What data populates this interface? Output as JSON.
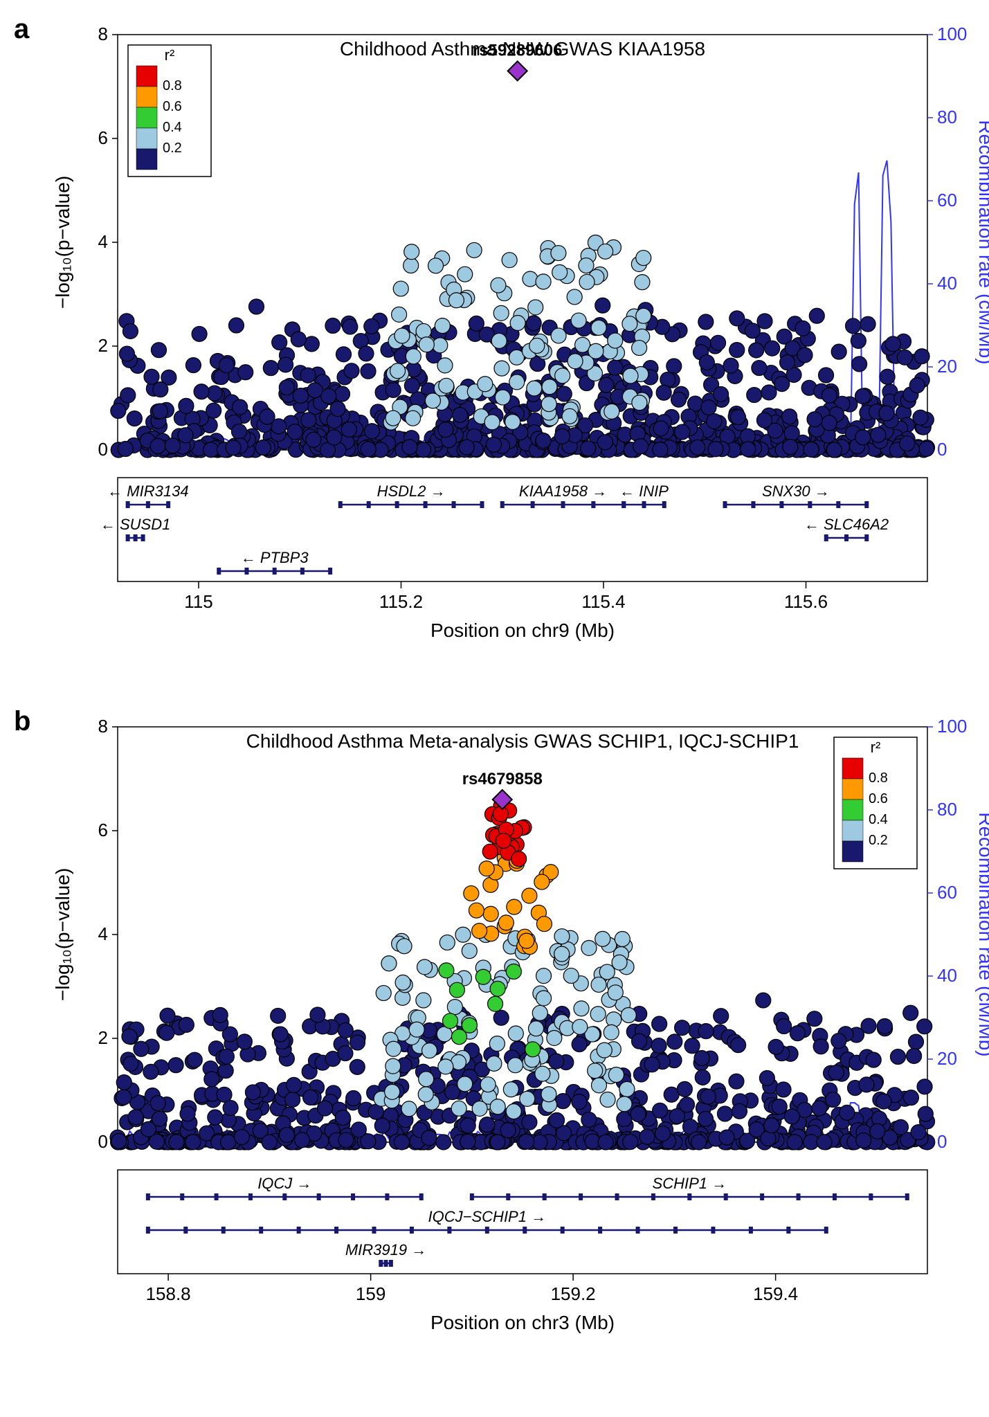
{
  "colors": {
    "navy": "#18186c",
    "lightblue": "#9ecae1",
    "green": "#33cc33",
    "orange": "#ff9900",
    "red": "#e60000",
    "purple": "#9933cc",
    "recomb": "#3333ff",
    "axis": "#000000",
    "right_axis": "#3333ff",
    "gene": "#18186c",
    "box": "#000000",
    "bg": "#ffffff"
  },
  "legend": {
    "title": "r²",
    "ticks": [
      "0.8",
      "0.6",
      "0.4",
      "0.2"
    ],
    "swatches": [
      "#e60000",
      "#ff9900",
      "#33cc33",
      "#9ecae1",
      "#18186c"
    ]
  },
  "panel_a": {
    "label": "a",
    "title": "Childhood Asthma NHW GWAS KIAA1958",
    "lead_snp": "rs59289606",
    "lead_xy": [
      115.315,
      7.3
    ],
    "ylabel": "−log₁₀(p−value)",
    "ylabel_right": "Recombination rate (cM/Mb)",
    "xlabel": "Position on chr9 (Mb)",
    "ylim": [
      0,
      8
    ],
    "yticks": [
      0,
      2,
      4,
      6,
      8
    ],
    "y2lim": [
      0,
      100
    ],
    "y2ticks": [
      0,
      20,
      40,
      60,
      80,
      100
    ],
    "xlim": [
      114.92,
      115.72
    ],
    "xticks": [
      115,
      115.2,
      115.4,
      115.6
    ],
    "legend_pos": "topleft",
    "genes": [
      {
        "name": "MIR3134",
        "arrow": "←",
        "start": 114.93,
        "end": 114.97,
        "row": 0
      },
      {
        "name": "SUSD1",
        "arrow": "←",
        "start": 114.93,
        "end": 114.945,
        "row": 1
      },
      {
        "name": "PTBP3",
        "arrow": "←",
        "start": 115.02,
        "end": 115.13,
        "row": 2
      },
      {
        "name": "HSDL2",
        "arrow": "→",
        "start": 115.14,
        "end": 115.28,
        "row": 0
      },
      {
        "name": "KIAA1958",
        "arrow": "→",
        "start": 115.3,
        "end": 115.42,
        "row": 0
      },
      {
        "name": "INIP",
        "arrow": "←",
        "start": 115.42,
        "end": 115.46,
        "row": 0
      },
      {
        "name": "SNX30",
        "arrow": "→",
        "start": 115.52,
        "end": 115.66,
        "row": 0
      },
      {
        "name": "SLC46A2",
        "arrow": "←",
        "start": 115.62,
        "end": 115.66,
        "row": 1
      }
    ],
    "recomb_spikes": [
      [
        115.65,
        70
      ],
      [
        115.68,
        73
      ]
    ],
    "n_navy": 800,
    "n_lightblue": 120
  },
  "panel_b": {
    "label": "b",
    "title": "Childhood Asthma Meta-analysis GWAS SCHIP1, IQCJ-SCHIP1",
    "lead_snp": "rs4679858",
    "lead_xy": [
      159.13,
      6.6
    ],
    "ylabel": "−log₁₀(p−value)",
    "ylabel_right": "Recombination rate (cM/Mb)",
    "xlabel": "Position on chr3 (Mb)",
    "ylim": [
      0,
      8
    ],
    "yticks": [
      0,
      2,
      4,
      6,
      8
    ],
    "y2lim": [
      0,
      100
    ],
    "y2ticks": [
      0,
      20,
      40,
      60,
      80,
      100
    ],
    "xlim": [
      158.75,
      159.55
    ],
    "xticks": [
      158.8,
      159,
      159.2,
      159.4
    ],
    "legend_pos": "topright",
    "genes": [
      {
        "name": "IQCJ",
        "arrow": "→",
        "start": 158.78,
        "end": 159.05,
        "row": 0
      },
      {
        "name": "SCHIP1",
        "arrow": "→",
        "start": 159.1,
        "end": 159.53,
        "row": 0
      },
      {
        "name": "IQCJ−SCHIP1",
        "arrow": "→",
        "start": 158.78,
        "end": 159.45,
        "row": 1
      },
      {
        "name": "MIR3919",
        "arrow": "→",
        "start": 159.01,
        "end": 159.02,
        "row": 2
      }
    ],
    "recomb_spikes": [
      [
        159.48,
        12
      ]
    ],
    "n_navy": 700,
    "n_lightblue": 130,
    "n_green": 10,
    "n_orange": 25,
    "n_red": 20
  }
}
